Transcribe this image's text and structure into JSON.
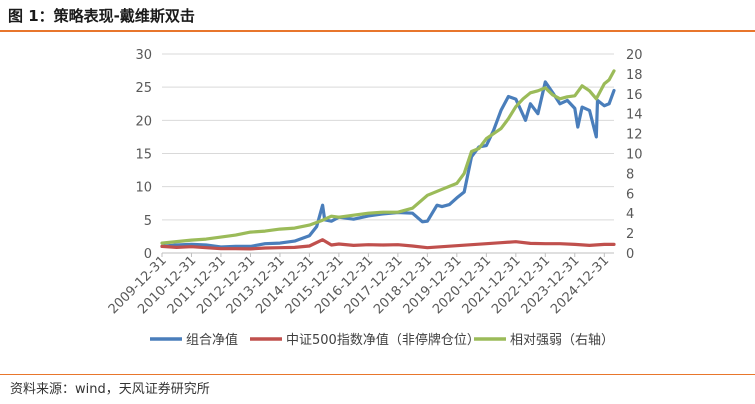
{
  "figure": {
    "title": "图 1：策略表现-戴维斯双击",
    "source": "资料来源：wind，天风证券研究所"
  },
  "chart_data": {
    "type": "line",
    "title": "",
    "xlabel": "",
    "ylabel": "",
    "ylim": [
      0,
      30
    ],
    "y2lim": [
      0,
      20
    ],
    "y_ticks": [
      "0",
      "5",
      "10",
      "15",
      "20",
      "25",
      "30"
    ],
    "y2_ticks": [
      "0",
      "2",
      "4",
      "6",
      "8",
      "10",
      "12",
      "14",
      "16",
      "18",
      "20"
    ],
    "x_ticks": [
      "2009-12-31",
      "2010-12-31",
      "2011-12-31",
      "2012-12-31",
      "2013-12-31",
      "2014-12-31",
      "2015-12-31",
      "2016-12-31",
      "2017-12-31",
      "2018-12-31",
      "2019-12-31",
      "2020-12-31",
      "2021-12-31",
      "2022-12-31",
      "2023-12-31",
      "2024-12-31"
    ],
    "x_range": [
      "2009-12-31",
      "2025-04-30"
    ],
    "grid": "horizontal",
    "legend": "bottom",
    "series": [
      {
        "name": "组合净值",
        "axis": "left",
        "color": "#4a7ebb",
        "x": [
          "2009-12-31",
          "2010-06-30",
          "2010-12-31",
          "2011-06-30",
          "2011-12-31",
          "2012-06-30",
          "2012-12-31",
          "2013-06-30",
          "2013-12-31",
          "2014-06-30",
          "2014-12-31",
          "2015-03-31",
          "2015-06-12",
          "2015-07-08",
          "2015-09-30",
          "2015-12-31",
          "2016-06-30",
          "2016-12-31",
          "2017-06-30",
          "2017-12-31",
          "2018-06-30",
          "2018-10-31",
          "2018-12-31",
          "2019-04-30",
          "2019-06-30",
          "2019-09-30",
          "2019-12-31",
          "2020-03-31",
          "2020-06-30",
          "2020-09-30",
          "2020-12-31",
          "2021-03-31",
          "2021-06-30",
          "2021-09-30",
          "2021-12-31",
          "2022-03-31",
          "2022-04-30",
          "2022-06-30",
          "2022-09-30",
          "2022-12-31",
          "2023-03-31",
          "2023-06-30",
          "2023-09-30",
          "2023-12-31",
          "2024-02-07",
          "2024-03-31",
          "2024-06-30",
          "2024-09-23",
          "2024-10-08",
          "2024-12-31",
          "2025-02-28",
          "2025-04-30"
        ],
        "values": [
          1.0,
          1.2,
          1.3,
          1.2,
          0.9,
          1.0,
          1.0,
          1.4,
          1.5,
          1.8,
          2.6,
          4.0,
          7.2,
          5.0,
          4.8,
          5.4,
          5.1,
          5.6,
          5.9,
          6.1,
          6.0,
          4.7,
          4.8,
          7.2,
          7.0,
          7.3,
          8.3,
          9.2,
          14.5,
          16.0,
          16.2,
          18.5,
          21.5,
          23.6,
          23.2,
          20.8,
          20.0,
          22.5,
          21.0,
          25.8,
          24.2,
          22.5,
          23.0,
          21.8,
          19.0,
          22.0,
          21.5,
          17.5,
          23.0,
          22.2,
          22.5,
          24.5
        ]
      },
      {
        "name": "中证500指数净值（非停牌仓位）",
        "axis": "left",
        "color": "#c0504d",
        "x": [
          "2009-12-31",
          "2010-06-30",
          "2010-12-31",
          "2011-06-30",
          "2011-12-31",
          "2012-06-30",
          "2012-12-31",
          "2013-06-30",
          "2013-12-31",
          "2014-06-30",
          "2014-12-31",
          "2015-06-12",
          "2015-09-30",
          "2015-12-31",
          "2016-06-30",
          "2016-12-31",
          "2017-06-30",
          "2017-12-31",
          "2018-06-30",
          "2018-12-31",
          "2019-06-30",
          "2019-12-31",
          "2020-06-30",
          "2020-12-31",
          "2021-06-30",
          "2021-12-31",
          "2022-06-30",
          "2022-12-31",
          "2023-06-30",
          "2023-12-31",
          "2024-06-30",
          "2024-12-31",
          "2025-04-30"
        ],
        "values": [
          1.0,
          0.85,
          0.95,
          0.8,
          0.65,
          0.65,
          0.62,
          0.75,
          0.8,
          0.85,
          1.05,
          2.0,
          1.2,
          1.35,
          1.15,
          1.25,
          1.2,
          1.25,
          1.05,
          0.8,
          0.95,
          1.1,
          1.25,
          1.4,
          1.55,
          1.7,
          1.45,
          1.4,
          1.4,
          1.3,
          1.15,
          1.3,
          1.3
        ]
      },
      {
        "name": "相对强弱（右轴）",
        "axis": "right",
        "color": "#9bbb59",
        "x": [
          "2009-12-31",
          "2010-06-30",
          "2010-12-31",
          "2011-06-30",
          "2011-12-31",
          "2012-06-30",
          "2012-12-31",
          "2013-06-30",
          "2013-12-31",
          "2014-06-30",
          "2014-12-31",
          "2015-06-12",
          "2015-09-30",
          "2015-12-31",
          "2016-06-30",
          "2016-12-31",
          "2017-06-30",
          "2017-12-31",
          "2018-06-30",
          "2018-12-31",
          "2019-06-30",
          "2019-12-31",
          "2020-03-31",
          "2020-06-30",
          "2020-09-30",
          "2020-12-31",
          "2021-06-30",
          "2021-09-30",
          "2021-12-31",
          "2022-03-31",
          "2022-06-30",
          "2022-09-30",
          "2022-12-31",
          "2023-03-31",
          "2023-06-30",
          "2023-09-30",
          "2023-12-31",
          "2024-03-31",
          "2024-06-30",
          "2024-09-23",
          "2024-12-31",
          "2025-02-28",
          "2025-04-30"
        ],
        "values": [
          1.0,
          1.15,
          1.3,
          1.4,
          1.6,
          1.8,
          2.1,
          2.2,
          2.4,
          2.5,
          2.8,
          3.3,
          3.7,
          3.6,
          3.8,
          4.0,
          4.1,
          4.1,
          4.5,
          5.8,
          6.4,
          7.0,
          8.0,
          10.2,
          10.5,
          11.5,
          12.5,
          13.5,
          14.7,
          15.5,
          16.1,
          16.3,
          16.6,
          15.9,
          15.5,
          15.7,
          15.8,
          16.8,
          16.3,
          15.5,
          17.0,
          17.4,
          18.3
        ]
      }
    ]
  }
}
